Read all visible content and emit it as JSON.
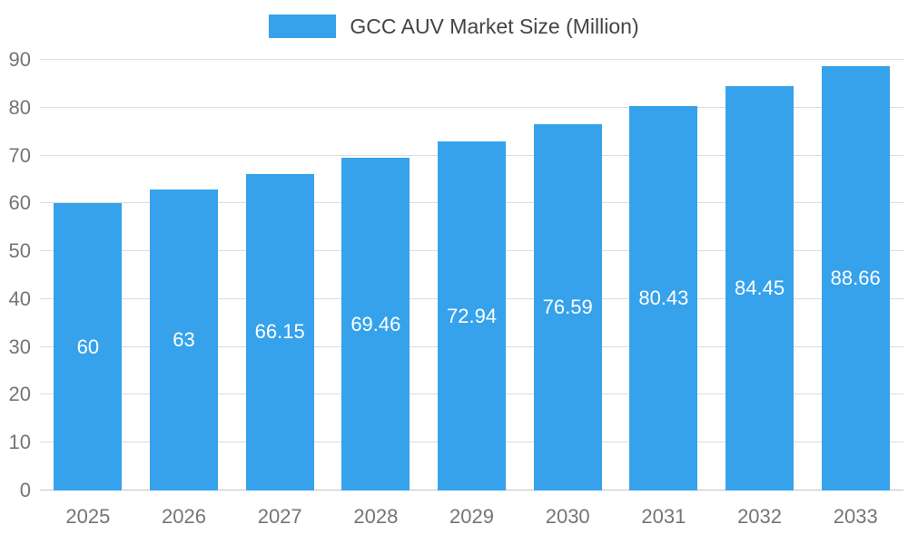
{
  "chart_data": {
    "type": "bar",
    "title": "GCC AUV Market Size (Million)",
    "categories": [
      "2025",
      "2026",
      "2027",
      "2028",
      "2029",
      "2030",
      "2031",
      "2032",
      "2033"
    ],
    "values": [
      60,
      63,
      66.15,
      69.46,
      72.94,
      76.59,
      80.43,
      84.45,
      88.66
    ],
    "value_labels": [
      "60",
      "63",
      "66.15",
      "69.46",
      "72.94",
      "76.59",
      "80.43",
      "84.45",
      "88.66"
    ],
    "ylim": [
      0,
      90
    ],
    "ytick_step": 10,
    "ytick_labels": [
      "0",
      "10",
      "20",
      "30",
      "40",
      "50",
      "60",
      "70",
      "80",
      "90"
    ],
    "grid": true,
    "legend_position": "top",
    "colors": {
      "bar": "#36A2EB",
      "grid": "#dddddd",
      "baseline": "#c2c2c2",
      "axis_text": "#757575",
      "title_text": "#444444",
      "value_label": "#ffffff",
      "background": "#ffffff"
    }
  }
}
